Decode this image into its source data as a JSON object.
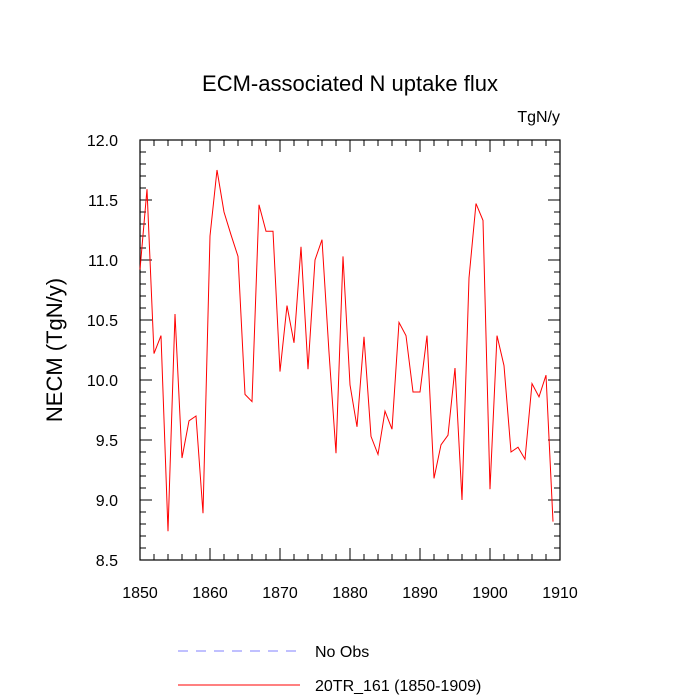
{
  "chart_data": {
    "type": "line",
    "title": "ECM-associated N uptake flux",
    "units_label": "TgN/y",
    "xlabel": "",
    "ylabel": "NECM  (TgN/y)",
    "xlim": [
      1850,
      1910
    ],
    "ylim": [
      8.5,
      12.0
    ],
    "xticks": [
      1850,
      1860,
      1870,
      1880,
      1890,
      1900,
      1910
    ],
    "yticks": [
      8.5,
      9.0,
      9.5,
      10.0,
      10.5,
      11.0,
      11.5,
      12.0
    ],
    "ytick_labels": [
      "8.5",
      "9.0",
      "9.5",
      "10.0",
      "10.5",
      "11.0",
      "11.5",
      "12.0"
    ],
    "series": [
      {
        "name": "20TR_161 (1850-1909)",
        "color": "#ff0000",
        "dash": "solid",
        "x": [
          1850,
          1851,
          1852,
          1853,
          1854,
          1855,
          1856,
          1857,
          1858,
          1859,
          1860,
          1861,
          1862,
          1863,
          1864,
          1865,
          1866,
          1867,
          1868,
          1869,
          1870,
          1871,
          1872,
          1873,
          1874,
          1875,
          1876,
          1877,
          1878,
          1879,
          1880,
          1881,
          1882,
          1883,
          1884,
          1885,
          1886,
          1887,
          1888,
          1889,
          1890,
          1891,
          1892,
          1893,
          1894,
          1895,
          1896,
          1897,
          1898,
          1899,
          1900,
          1901,
          1902,
          1903,
          1904,
          1905,
          1906,
          1907,
          1908,
          1909
        ],
        "values": [
          10.92,
          11.59,
          10.22,
          10.37,
          8.74,
          10.55,
          9.35,
          9.66,
          9.7,
          8.89,
          11.2,
          11.75,
          11.4,
          11.21,
          11.03,
          9.88,
          9.82,
          11.46,
          11.24,
          11.24,
          10.07,
          10.62,
          10.31,
          11.11,
          10.09,
          11.0,
          11.17,
          10.23,
          9.39,
          11.03,
          9.96,
          9.61,
          10.36,
          9.53,
          9.38,
          9.74,
          9.59,
          10.48,
          10.37,
          9.9,
          9.9,
          10.37,
          9.18,
          9.46,
          9.54,
          10.1,
          9.0,
          10.85,
          11.47,
          11.33,
          9.09,
          10.37,
          10.12,
          9.4,
          9.44,
          9.34,
          9.97,
          9.86,
          10.04,
          8.82
        ]
      },
      {
        "name": "No Obs",
        "color": "#8080ff",
        "dash": "dashed",
        "x": [],
        "values": []
      }
    ],
    "legend": [
      {
        "label": "No Obs",
        "color": "#8080ff",
        "dash": "dashed"
      },
      {
        "label": "20TR_161 (1850-1909)",
        "color": "#ff0000",
        "dash": "solid"
      }
    ],
    "legend_position": "bottom",
    "grid": false
  }
}
